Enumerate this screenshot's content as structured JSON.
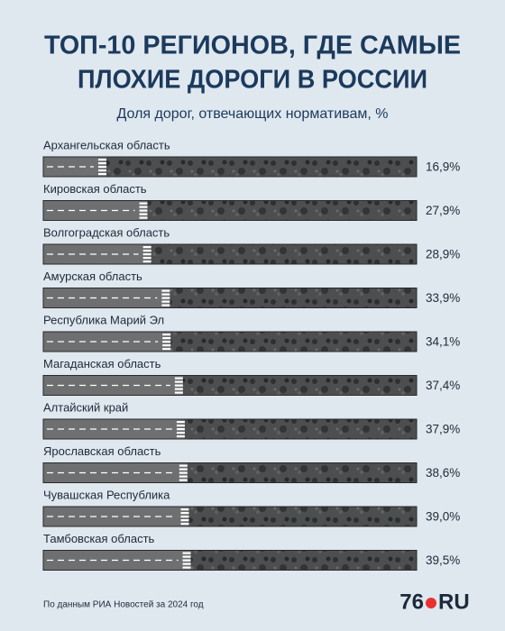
{
  "chart_data": {
    "type": "bar",
    "title": [
      "ТОП-10 РЕГИОНОВ, ГДЕ САМЫЕ",
      "ПЛОХИЕ ДОРОГИ В РОССИИ"
    ],
    "subtitle": "Доля дорог, отвечающих нормативам, %",
    "categories": [
      "Архангельская область",
      "Кировская область",
      "Волгоградская область",
      "Амурская область",
      "Республика Марий Эл",
      "Магаданская область",
      "Алтайский край",
      "Ярославская область",
      "Чувашская Республика",
      "Тамбовская область"
    ],
    "values": [
      16.9,
      27.9,
      28.9,
      33.9,
      34.1,
      37.4,
      37.9,
      38.6,
      39.0,
      39.5
    ],
    "value_labels": [
      "16,9%",
      "27,9%",
      "28,9%",
      "33,9%",
      "34,1%",
      "37,4%",
      "37,9%",
      "38,6%",
      "39,0%",
      "39,5%"
    ],
    "xlim": [
      0,
      100
    ],
    "color": "#6e6f71",
    "source": "По данным РИА Новостей за 2024 год",
    "logo": {
      "number": "76",
      "domain": "RU"
    }
  }
}
